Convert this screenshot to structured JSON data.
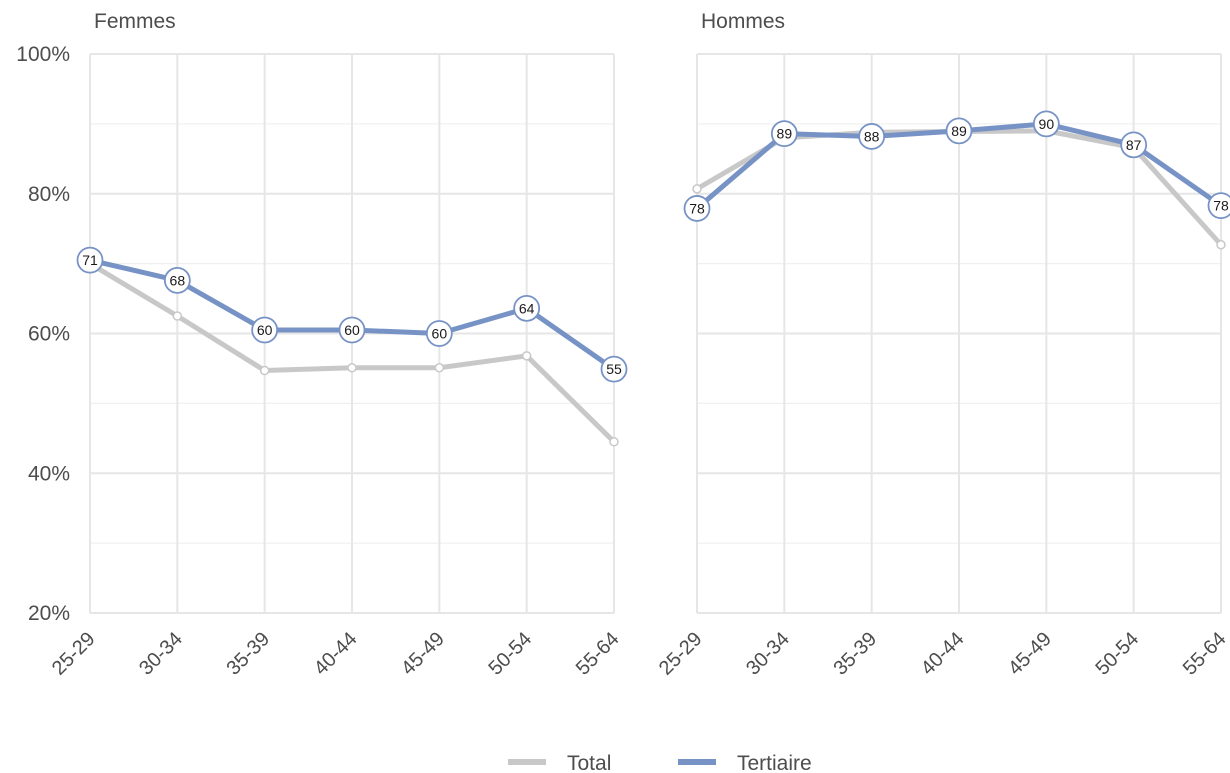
{
  "chart_data": {
    "type": "line",
    "categories": [
      "25-29",
      "30-34",
      "35-39",
      "40-44",
      "45-49",
      "50-54",
      "55-64"
    ],
    "ylim": [
      20,
      100
    ],
    "yticks": [
      20,
      40,
      60,
      80,
      100
    ],
    "ytick_labels": [
      "20%",
      "40%",
      "60%",
      "80%",
      "100%"
    ],
    "grid": true,
    "legend_position": "bottom",
    "colors": {
      "Total": "#c8c8c8",
      "Tertiaire": "#7793c6"
    },
    "legend": [
      "Total",
      "Tertiaire"
    ],
    "panels": [
      {
        "title": "Femmes",
        "series": [
          {
            "name": "Total",
            "values": [
              70,
              62.5,
              54.7,
              55.1,
              55.1,
              56.8,
              44.5
            ]
          },
          {
            "name": "Tertiaire",
            "values": [
              70.5,
              67.6,
              60.5,
              60.5,
              60.0,
              63.6,
              54.9
            ],
            "labels": [
              "71",
              "68",
              "60",
              "60",
              "60",
              "64",
              "55"
            ]
          }
        ]
      },
      {
        "title": "Hommes",
        "series": [
          {
            "name": "Total",
            "values": [
              80.7,
              88.0,
              88.8,
              88.9,
              89.0,
              86.6,
              72.7
            ]
          },
          {
            "name": "Tertiaire",
            "values": [
              77.9,
              88.6,
              88.2,
              89.0,
              90.0,
              87.0,
              78.3
            ],
            "labels": [
              "78",
              "89",
              "88",
              "89",
              "90",
              "87",
              "78"
            ]
          }
        ]
      }
    ]
  }
}
